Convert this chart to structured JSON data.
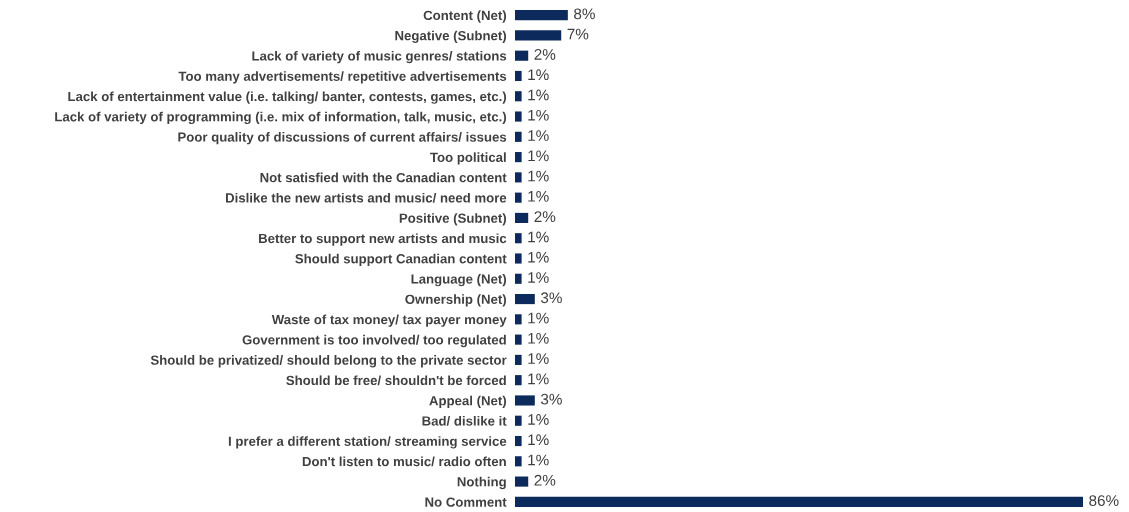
{
  "chart_data": {
    "type": "bar",
    "orientation": "horizontal",
    "color": "#0d2a5c",
    "tick_labels": "y",
    "categories": [
      "Content (Net)",
      "Negative (Subnet)",
      "Lack of variety of music genres/ stations",
      "Too many advertisements/ repetitive advertisements",
      "Lack of entertainment value (i.e. talking/ banter, contests, games, etc.)",
      "Lack of variety of programming (i.e. mix of information, talk, music, etc.)",
      "Poor quality of discussions of current affairs/ issues",
      "Too political",
      "Not satisfied with the Canadian content",
      "Dislike the new artists and music/ need more",
      "Positive (Subnet)",
      "Better to support new artists and music",
      "Should support Canadian content",
      "Language (Net)",
      "Ownership (Net)",
      "Waste of tax money/ tax payer money",
      "Government is too involved/ too regulated",
      "Should be privatized/ should belong to the private sector",
      "Should be free/ shouldn't be forced",
      "Appeal (Net)",
      "Bad/ dislike it",
      "I prefer a different station/ streaming service",
      "Don't listen to music/ radio often",
      "Nothing",
      "No Comment"
    ],
    "values": [
      8,
      7,
      2,
      1,
      1,
      1,
      1,
      1,
      1,
      1,
      2,
      1,
      1,
      1,
      3,
      1,
      1,
      1,
      1,
      3,
      1,
      1,
      1,
      2,
      86
    ],
    "value_labels": [
      "8%",
      "7%",
      "2%",
      "1%",
      "1%",
      "1%",
      "1%",
      "1%",
      "1%",
      "1%",
      "2%",
      "1%",
      "1%",
      "1%",
      "3%",
      "1%",
      "1%",
      "1%",
      "1%",
      "3%",
      "1%",
      "1%",
      "1%",
      "2%",
      "86%"
    ]
  }
}
